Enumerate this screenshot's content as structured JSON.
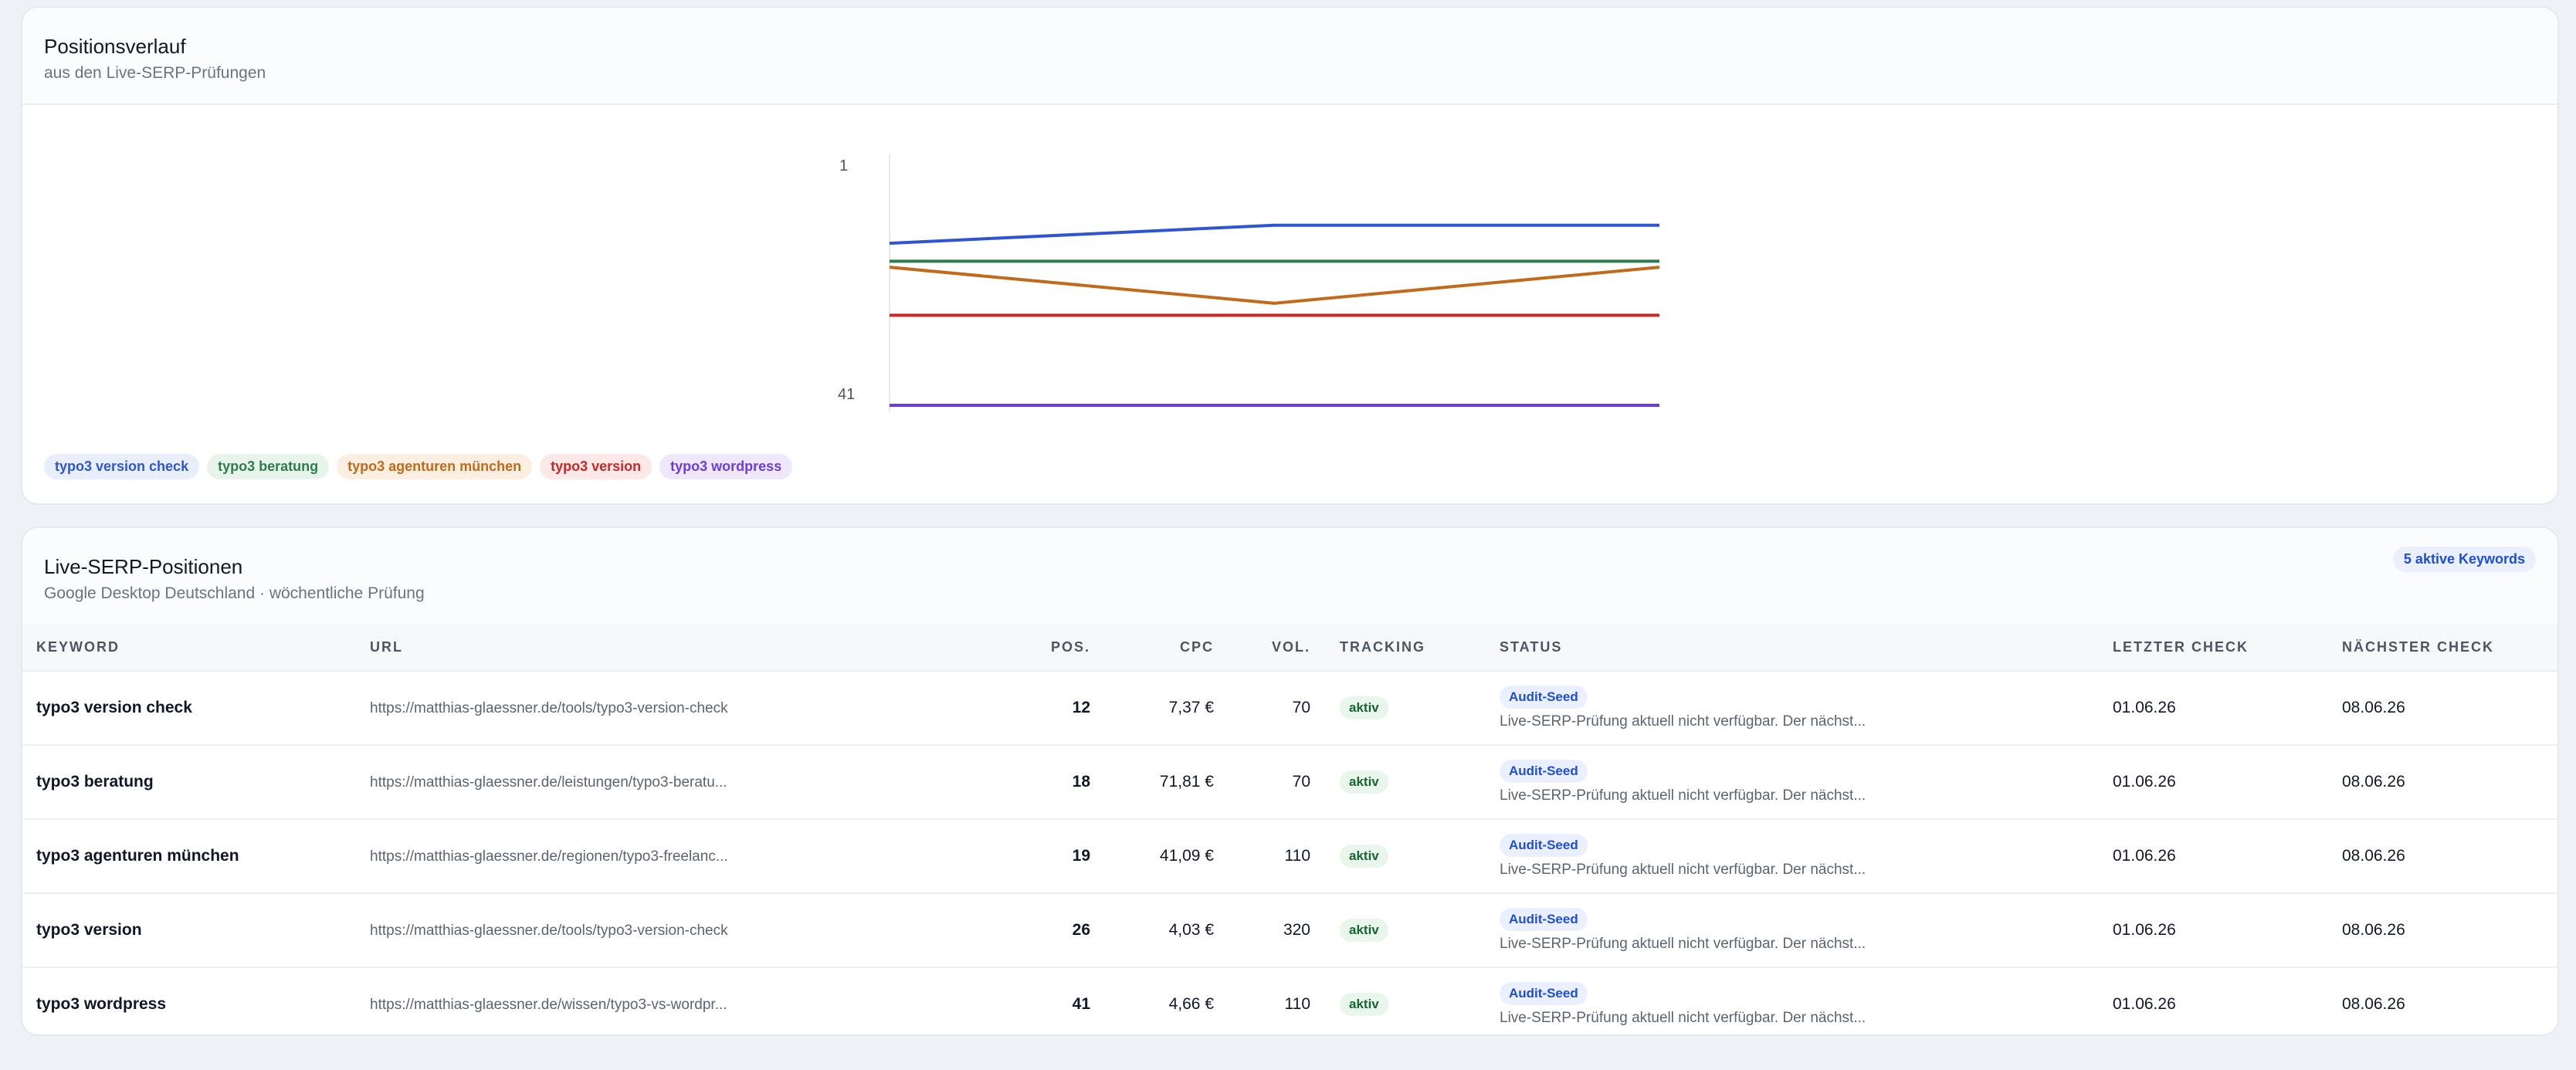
{
  "chart_card": {
    "title": "Positionsverlauf",
    "subtitle": "aus den Live-SERP-Prüfungen"
  },
  "chart_data": {
    "type": "line",
    "x": [
      "",
      "",
      ""
    ],
    "ylim": [
      1,
      41
    ],
    "y_inverted": true,
    "yticks": [
      "1",
      "41"
    ],
    "grid": false,
    "legend_position": "bottom-left",
    "series": [
      {
        "name": "typo3 version check",
        "color": "#2f55d4",
        "bg": "#e8eefc",
        "values": [
          14,
          11,
          11
        ]
      },
      {
        "name": "typo3 beratung",
        "color": "#2e7d4f",
        "bg": "#e6f4ea",
        "values": [
          17,
          17,
          17
        ]
      },
      {
        "name": "typo3 agenturen münchen",
        "color": "#c26a1a",
        "bg": "#fcefe2",
        "values": [
          18,
          24,
          18
        ]
      },
      {
        "name": "typo3 version",
        "color": "#c62828",
        "bg": "#fde8e8",
        "values": [
          26,
          26,
          26
        ]
      },
      {
        "name": "typo3 wordpress",
        "color": "#6d3ce0",
        "bg": "#efe8fc",
        "values": [
          41,
          41,
          41
        ]
      }
    ]
  },
  "table_card": {
    "title": "Live-SERP-Positionen",
    "subtitle": "Google Desktop Deutschland · wöchentliche Prüfung",
    "count_badge": "5 aktive Keywords",
    "columns": [
      "KEYWORD",
      "URL",
      "POS.",
      "CPC",
      "VOL.",
      "TRACKING",
      "STATUS",
      "LETZTER CHECK",
      "NÄCHSTER CHECK"
    ],
    "rows": [
      {
        "keyword": "typo3 version check",
        "url": "https://matthias-glaessner.de/tools/typo3-version-check",
        "pos": "12",
        "cpc": "7,37 €",
        "vol": "70",
        "tracking": "aktiv",
        "status_badge": "Audit-Seed",
        "status_text": "Live-SERP-Prüfung aktuell nicht verfügbar. Der nächst...",
        "last": "01.06.26",
        "next": "08.06.26"
      },
      {
        "keyword": "typo3 beratung",
        "url": "https://matthias-glaessner.de/leistungen/typo3-beratu...",
        "pos": "18",
        "cpc": "71,81 €",
        "vol": "70",
        "tracking": "aktiv",
        "status_badge": "Audit-Seed",
        "status_text": "Live-SERP-Prüfung aktuell nicht verfügbar. Der nächst...",
        "last": "01.06.26",
        "next": "08.06.26"
      },
      {
        "keyword": "typo3 agenturen münchen",
        "url": "https://matthias-glaessner.de/regionen/typo3-freelanc...",
        "pos": "19",
        "cpc": "41,09 €",
        "vol": "110",
        "tracking": "aktiv",
        "status_badge": "Audit-Seed",
        "status_text": "Live-SERP-Prüfung aktuell nicht verfügbar. Der nächst...",
        "last": "01.06.26",
        "next": "08.06.26"
      },
      {
        "keyword": "typo3 version",
        "url": "https://matthias-glaessner.de/tools/typo3-version-check",
        "pos": "26",
        "cpc": "4,03 €",
        "vol": "320",
        "tracking": "aktiv",
        "status_badge": "Audit-Seed",
        "status_text": "Live-SERP-Prüfung aktuell nicht verfügbar. Der nächst...",
        "last": "01.06.26",
        "next": "08.06.26"
      },
      {
        "keyword": "typo3 wordpress",
        "url": "https://matthias-glaessner.de/wissen/typo3-vs-wordpr...",
        "pos": "41",
        "cpc": "4,66 €",
        "vol": "110",
        "tracking": "aktiv",
        "status_badge": "Audit-Seed",
        "status_text": "Live-SERP-Prüfung aktuell nicht verfügbar. Der nächst...",
        "last": "01.06.26",
        "next": "08.06.26"
      }
    ]
  }
}
